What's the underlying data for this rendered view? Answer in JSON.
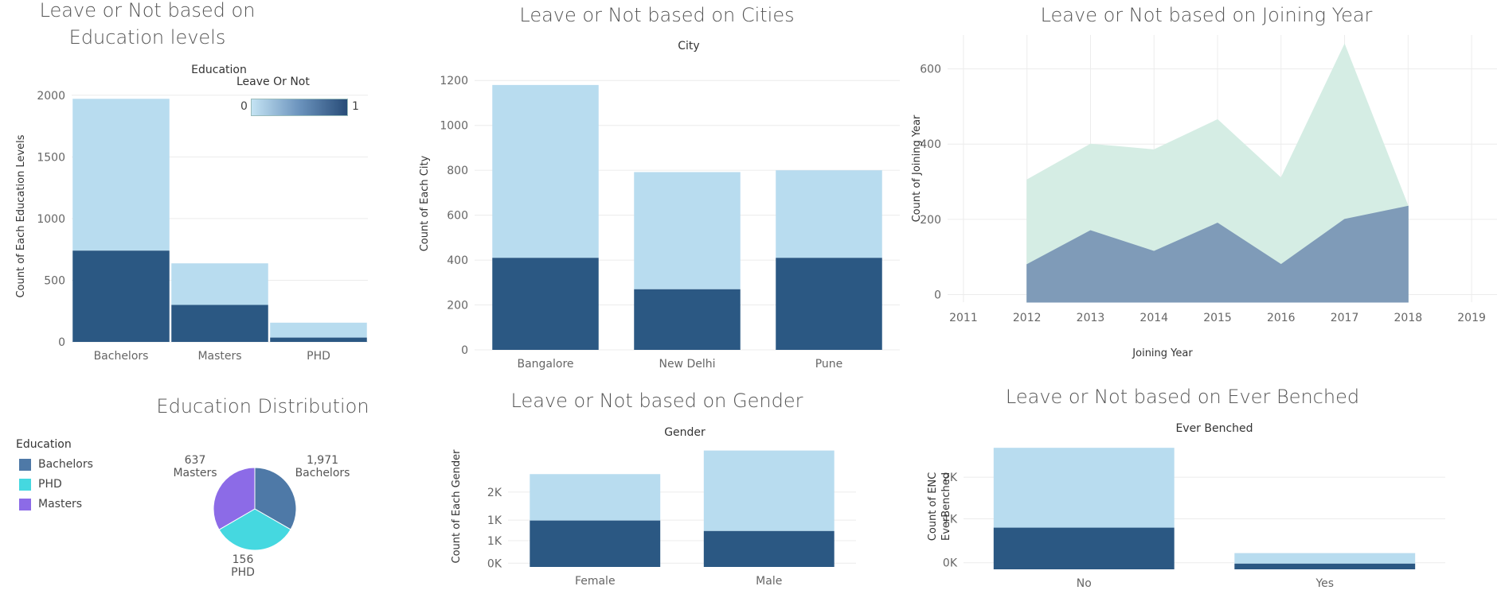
{
  "colors": {
    "light": "#b8dcef",
    "dark": "#2b5883",
    "area_green": "#d5ede4",
    "area_blue": "#7f9bb8",
    "bachelors": "#4e79a7",
    "phd": "#45d8e0",
    "masters": "#8c6be7",
    "grid": "#ececec"
  },
  "charts": {
    "education": {
      "title": "Leave or Not based on Education levels",
      "header": "Education",
      "ylabel": "Count of Each Education Levels",
      "legend_title": "Leave Or Not",
      "legend_min": "0",
      "legend_max": "1",
      "ticks": [
        "0",
        "500",
        "1000",
        "1500",
        "2000"
      ]
    },
    "cities": {
      "title": "Leave or Not based on Cities",
      "header": "City",
      "ylabel": "Count of Each City",
      "ticks": [
        "0",
        "200",
        "400",
        "600",
        "800",
        "1000",
        "1200"
      ]
    },
    "joining": {
      "title": "Leave or Not based on Joining Year",
      "ylabel": "Count of Joining Year",
      "xlabel": "Joining Year",
      "yticks": [
        "0",
        "200",
        "400",
        "600"
      ],
      "xticks": [
        "2011",
        "2012",
        "2013",
        "2014",
        "2015",
        "2016",
        "2017",
        "2018",
        "2019"
      ]
    },
    "distribution": {
      "title": "Education Distribution",
      "legend_title": "Education",
      "legend": [
        "Bachelors",
        "PHD",
        "Masters"
      ],
      "labels": [
        {
          "value": "1,971",
          "name": "Bachelors"
        },
        {
          "value": "637",
          "name": "Masters"
        },
        {
          "value": "156",
          "name": "PHD"
        }
      ]
    },
    "gender": {
      "title": "Leave or Not based on Gender",
      "header": "Gender",
      "ylabel": "Count of Each Gender",
      "ticks": [
        "0K",
        "1K",
        "1K",
        "2K"
      ]
    },
    "benched": {
      "title": "Leave or Not based on Ever Benched",
      "header": "Ever Benched",
      "ylabel_1": "Count of ENC",
      "ylabel_2": "EverBenched",
      "ticks": [
        "0K",
        "1K",
        "2K"
      ]
    }
  },
  "chart_data": [
    {
      "type": "bar",
      "title": "Leave or Not based on Education levels",
      "categories": [
        "Bachelors",
        "Masters",
        "PHD"
      ],
      "series": [
        {
          "name": "1",
          "values": [
            740,
            300,
            35
          ]
        },
        {
          "name": "0",
          "values": [
            1231,
            337,
            121
          ]
        }
      ],
      "totals": [
        1971,
        637,
        156
      ],
      "ylim": [
        0,
        2050
      ]
    },
    {
      "type": "bar",
      "title": "Leave or Not based on Cities",
      "categories": [
        "Bangalore",
        "New Delhi",
        "Pune"
      ],
      "series": [
        {
          "name": "1",
          "values": [
            410,
            270,
            410
          ]
        },
        {
          "name": "0",
          "values": [
            770,
            522,
            390
          ]
        }
      ],
      "totals": [
        1180,
        792,
        800
      ],
      "ylim": [
        0,
        1300
      ]
    },
    {
      "type": "area",
      "title": "Leave or Not based on Joining Year",
      "x": [
        2012,
        2013,
        2014,
        2015,
        2016,
        2017,
        2018
      ],
      "series": [
        {
          "name": "0",
          "values": [
            305,
            400,
            385,
            465,
            310,
            665,
            235
          ]
        },
        {
          "name": "1",
          "values": [
            80,
            170,
            115,
            190,
            80,
            200,
            235
          ]
        }
      ],
      "xlim": [
        2010.75,
        2019.4
      ],
      "ylim": [
        -20,
        690
      ]
    },
    {
      "type": "pie",
      "title": "Education Distribution",
      "categories": [
        "Bachelors",
        "Masters",
        "PHD"
      ],
      "values": [
        1971,
        637,
        156
      ]
    },
    {
      "type": "bar",
      "title": "Leave or Not based on Gender",
      "categories": [
        "Female",
        "Male"
      ],
      "series": [
        {
          "name": "1",
          "values": [
            1240,
            960
          ]
        },
        {
          "name": "0",
          "values": [
            1240,
            2150
          ]
        }
      ],
      "totals": [
        2480,
        3110
      ],
      "ylim": [
        0,
        3250
      ]
    },
    {
      "type": "bar",
      "title": "Leave or Not based on Ever Benched",
      "categories": [
        "No",
        "Yes"
      ],
      "series": [
        {
          "name": "1",
          "values": [
            950,
            130
          ]
        },
        {
          "name": "0",
          "values": [
            1820,
            240
          ]
        }
      ],
      "totals": [
        2770,
        370
      ],
      "ylim": [
        0,
        2900
      ]
    }
  ]
}
